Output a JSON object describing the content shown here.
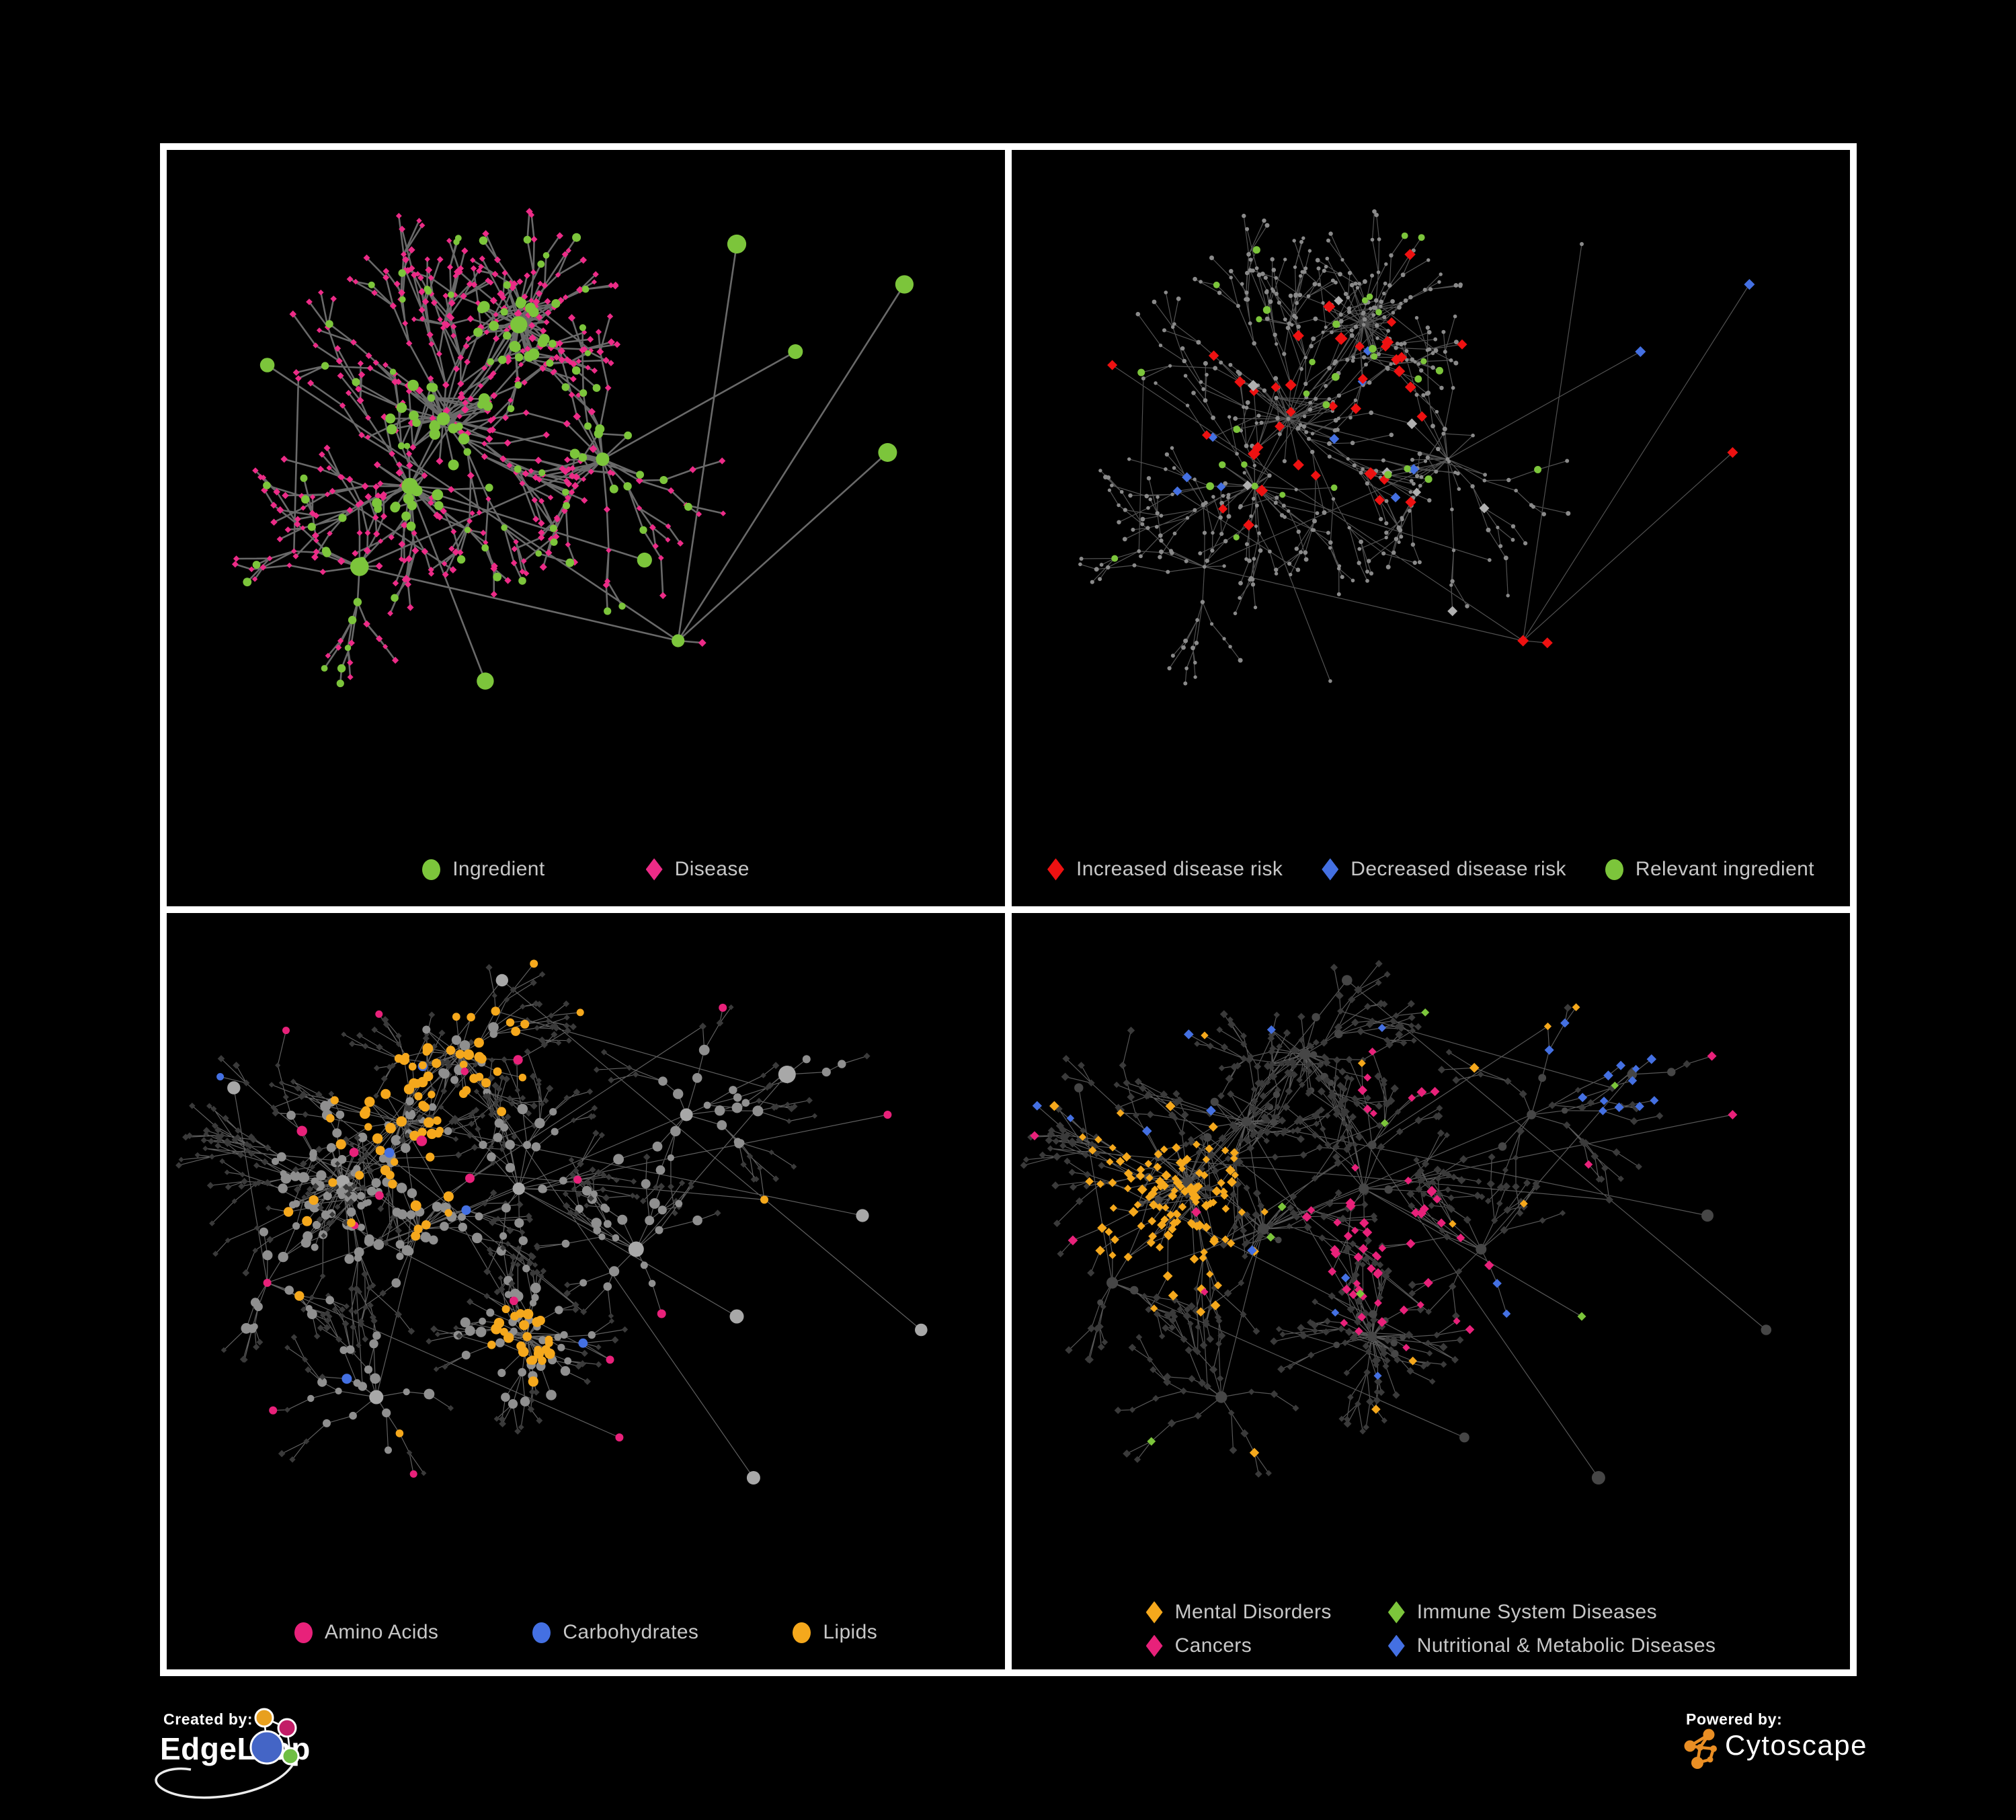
{
  "palette": {
    "green": "#7CC53B",
    "pink": "#EC2B87",
    "red": "#EE1111",
    "blue": "#4470E2",
    "orange": "#F5A81C",
    "magenta": "#E8217A",
    "gray_dot": "#8A8A8A",
    "gray_diamond": "#B0B0B0",
    "dim_diamond": "#3A3A3A",
    "dim_circle": "#464646",
    "frame_white": "#FFFFFF",
    "legend_text": "#C7C7C7",
    "background": "#000000"
  },
  "figure": {
    "panels": [
      {
        "id": "ingredient-disease-network",
        "legend": [
          {
            "label": "Ingredient",
            "color": "#7CC53B",
            "shape": "circle"
          },
          {
            "label": "Disease",
            "color": "#EC2B87",
            "shape": "diamond"
          }
        ]
      },
      {
        "id": "disease-risk-network",
        "legend": [
          {
            "label": "Increased disease risk",
            "color": "#EE1111",
            "shape": "diamond"
          },
          {
            "label": "Decreased disease risk",
            "color": "#4470E2",
            "shape": "diamond"
          },
          {
            "label": "Relevant ingredient",
            "color": "#7CC53B",
            "shape": "circle"
          }
        ]
      },
      {
        "id": "nutrient-class-network",
        "legend": [
          {
            "label": "Amino Acids",
            "color": "#E8217A",
            "shape": "circle"
          },
          {
            "label": "Carbohydrates",
            "color": "#4470E2",
            "shape": "circle"
          },
          {
            "label": "Lipids",
            "color": "#F5A81C",
            "shape": "circle"
          }
        ]
      },
      {
        "id": "disease-class-network",
        "legend": [
          {
            "label": "Mental Disorders",
            "color": "#F5A81C",
            "shape": "diamond"
          },
          {
            "label": "Immune System Diseases",
            "color": "#7CC53B",
            "shape": "diamond"
          },
          {
            "label": "Cancers",
            "color": "#E8217A",
            "shape": "diamond"
          },
          {
            "label": "Nutritional & Metabolic Diseases",
            "color": "#4470E2",
            "shape": "diamond"
          }
        ]
      }
    ]
  },
  "footer": {
    "created_by_label": "Created by:",
    "created_by_brand": "EdgeLeap",
    "powered_by_label": "Powered by:",
    "powered_by_brand": "Cytoscape"
  },
  "chart_data": [
    {
      "type": "network",
      "panel": "top-left",
      "description": "Ingredient-disease association network; green circles are ingredients, pink diamonds are diseases, gray edges",
      "node_classes": [
        {
          "name": "Ingredient",
          "shape": "circle",
          "color": "#7CC53B",
          "approx_count": 170
        },
        {
          "name": "Disease",
          "shape": "diamond",
          "color": "#EC2B87",
          "approx_count": 430
        }
      ],
      "legend_position": "bottom-center"
    },
    {
      "type": "network",
      "panel": "top-right",
      "description": "Same network highlighting disease-risk relations; most nodes collapsed to small gray dots",
      "node_classes": [
        {
          "name": "Increased disease risk",
          "shape": "diamond",
          "color": "#EE1111",
          "approx_count": 35
        },
        {
          "name": "Decreased disease risk",
          "shape": "diamond",
          "color": "#4470E2",
          "approx_count": 8
        },
        {
          "name": "Relevant ingredient",
          "shape": "circle",
          "color": "#7CC53B",
          "approx_count": 30
        },
        {
          "name": "Unclassified risk",
          "shape": "diamond",
          "color": "#B0B0B0",
          "approx_count": 8
        },
        {
          "name": "Other node",
          "shape": "circle",
          "color": "#8A8A8A",
          "approx_count": 520
        }
      ],
      "legend_position": "bottom-center"
    },
    {
      "type": "network",
      "panel": "bottom-left",
      "description": "Larger ingredient-disease network with ingredient circles colored by nutrient class; diseases dimmed dark diamonds",
      "node_classes": [
        {
          "name": "Amino Acids",
          "shape": "circle",
          "color": "#E8217A",
          "approx_count": 18
        },
        {
          "name": "Carbohydrates",
          "shape": "circle",
          "color": "#4470E2",
          "approx_count": 14
        },
        {
          "name": "Lipids",
          "shape": "circle",
          "color": "#F5A81C",
          "approx_count": 75
        },
        {
          "name": "Other ingredient",
          "shape": "circle",
          "color": "#8F8F8F",
          "approx_count": 180
        },
        {
          "name": "Disease (dimmed)",
          "shape": "diamond",
          "color": "#3A3A3A",
          "approx_count": 500
        }
      ],
      "legend_position": "bottom-center"
    },
    {
      "type": "network",
      "panel": "bottom-right",
      "description": "Same larger network with disease diamonds colored by disease class; ingredients dimmed dark circles",
      "node_classes": [
        {
          "name": "Mental Disorders",
          "shape": "diamond",
          "color": "#F5A81C",
          "approx_count": 75
        },
        {
          "name": "Immune System Diseases",
          "shape": "diamond",
          "color": "#7CC53B",
          "approx_count": 10
        },
        {
          "name": "Cancers",
          "shape": "diamond",
          "color": "#E8217A",
          "approx_count": 60
        },
        {
          "name": "Nutritional & Metabolic Diseases",
          "shape": "diamond",
          "color": "#4470E2",
          "approx_count": 80
        },
        {
          "name": "Other disease (dimmed)",
          "shape": "diamond",
          "color": "#3A3A3A",
          "approx_count": 450
        },
        {
          "name": "Ingredient (dimmed)",
          "shape": "circle",
          "color": "#464646",
          "approx_count": 120
        }
      ],
      "legend_position": "bottom-center"
    }
  ]
}
